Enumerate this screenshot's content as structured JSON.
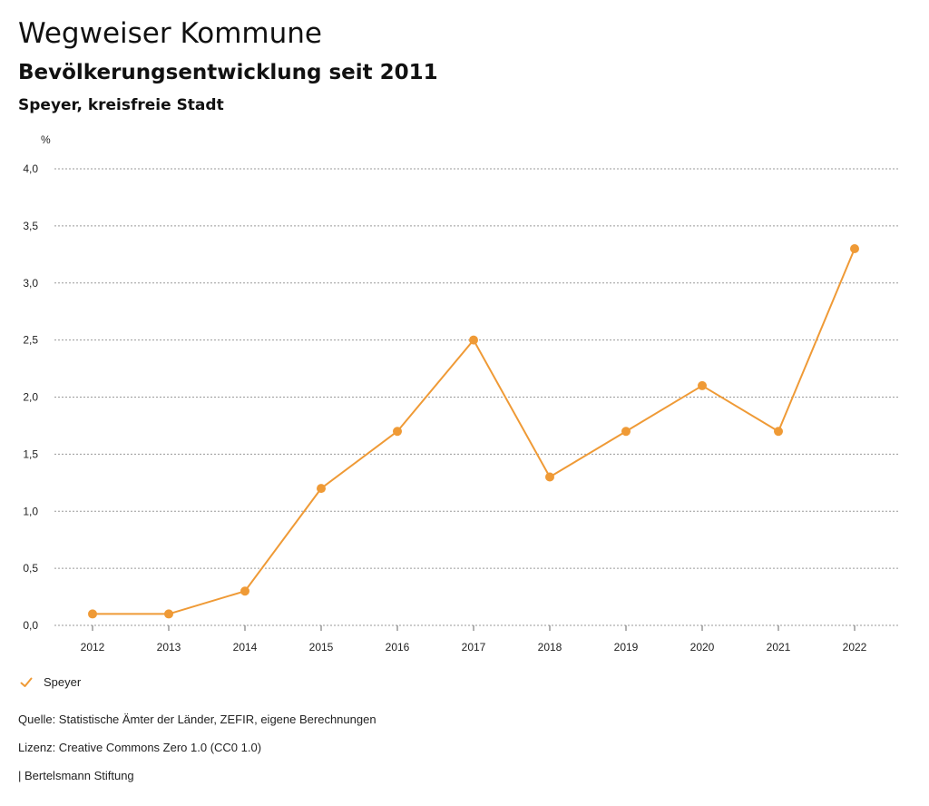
{
  "header": {
    "title": "Wegweiser Kommune",
    "subtitle": "Bevölkerungsentwicklung seit 2011",
    "region": "Speyer, kreisfreie Stadt"
  },
  "legend": {
    "label": "Speyer"
  },
  "footer": {
    "source": "Quelle: Statistische Ämter der Länder, ZEFIR, eigene Berechnungen",
    "license": "Lizenz: Creative Commons Zero 1.0 (CC0 1.0)",
    "publisher": "| Bertelsmann Stiftung"
  },
  "colors": {
    "series": "#ef9a36",
    "grid": "#9a9a9a"
  },
  "chart_data": {
    "type": "line",
    "title": "Bevölkerungsentwicklung seit 2011",
    "ylabel": "%",
    "xlabel": "",
    "ylim": [
      0,
      4
    ],
    "yticks": [
      "0,0",
      "0,5",
      "1,0",
      "1,5",
      "2,0",
      "2,5",
      "3,0",
      "3,5",
      "4,0"
    ],
    "ytick_values": [
      0,
      0.5,
      1,
      1.5,
      2,
      2.5,
      3,
      3.5,
      4
    ],
    "categories": [
      "2012",
      "2013",
      "2014",
      "2015",
      "2016",
      "2017",
      "2018",
      "2019",
      "2020",
      "2021",
      "2022"
    ],
    "series": [
      {
        "name": "Speyer",
        "values": [
          0.1,
          0.1,
          0.3,
          1.2,
          1.7,
          2.5,
          1.3,
          1.7,
          2.1,
          1.7,
          3.3
        ]
      }
    ],
    "grid": true,
    "legend_position": "bottom-left"
  }
}
